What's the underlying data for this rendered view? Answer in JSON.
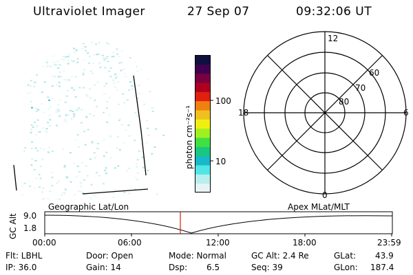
{
  "header": {
    "title": "Ultraviolet Imager",
    "date": "27 Sep 07",
    "time": "09:32:06 UT"
  },
  "colorbar": {
    "label": "photon cm⁻²s⁻¹",
    "ticks": [
      "100",
      "10"
    ],
    "colors": [
      "#e8f4f4",
      "#b8eeee",
      "#50e6e6",
      "#18b8c8",
      "#18c880",
      "#40e040",
      "#a0f020",
      "#f0f010",
      "#f0c020",
      "#f08010",
      "#e02010",
      "#b00020",
      "#780040",
      "#400050",
      "#101040"
    ]
  },
  "polar_plot": {
    "mlt_labels": {
      "top": "12",
      "bottom": "0",
      "left": "18",
      "right": "6"
    },
    "lat_labels": [
      "60",
      "70",
      "80"
    ]
  },
  "timeline": {
    "ylabel": "GC Alt",
    "left_title": "Geographic Lat/Lon",
    "right_title": "Apex MLat/MLT",
    "y_ticks": [
      "9.0",
      "1.8"
    ],
    "x_ticks": [
      "00:00",
      "06:00",
      "12:00",
      "18:00",
      "23:59"
    ],
    "marker_color": "#cc2200"
  },
  "info": {
    "flt": "Flt: LBHL",
    "ip": "IP: 36.0",
    "door": "Door: Open",
    "gain": "Gain: 14",
    "mode": "Mode: Normal",
    "dsp": "Dsp:",
    "dsp_value": "6.5",
    "gcalt": "GC Alt: 2.4 Re",
    "seq": "Seq: 39",
    "glat": "GLat:",
    "glat_value": "43.9",
    "glon": "GLon:",
    "glon_value": "187.4"
  }
}
